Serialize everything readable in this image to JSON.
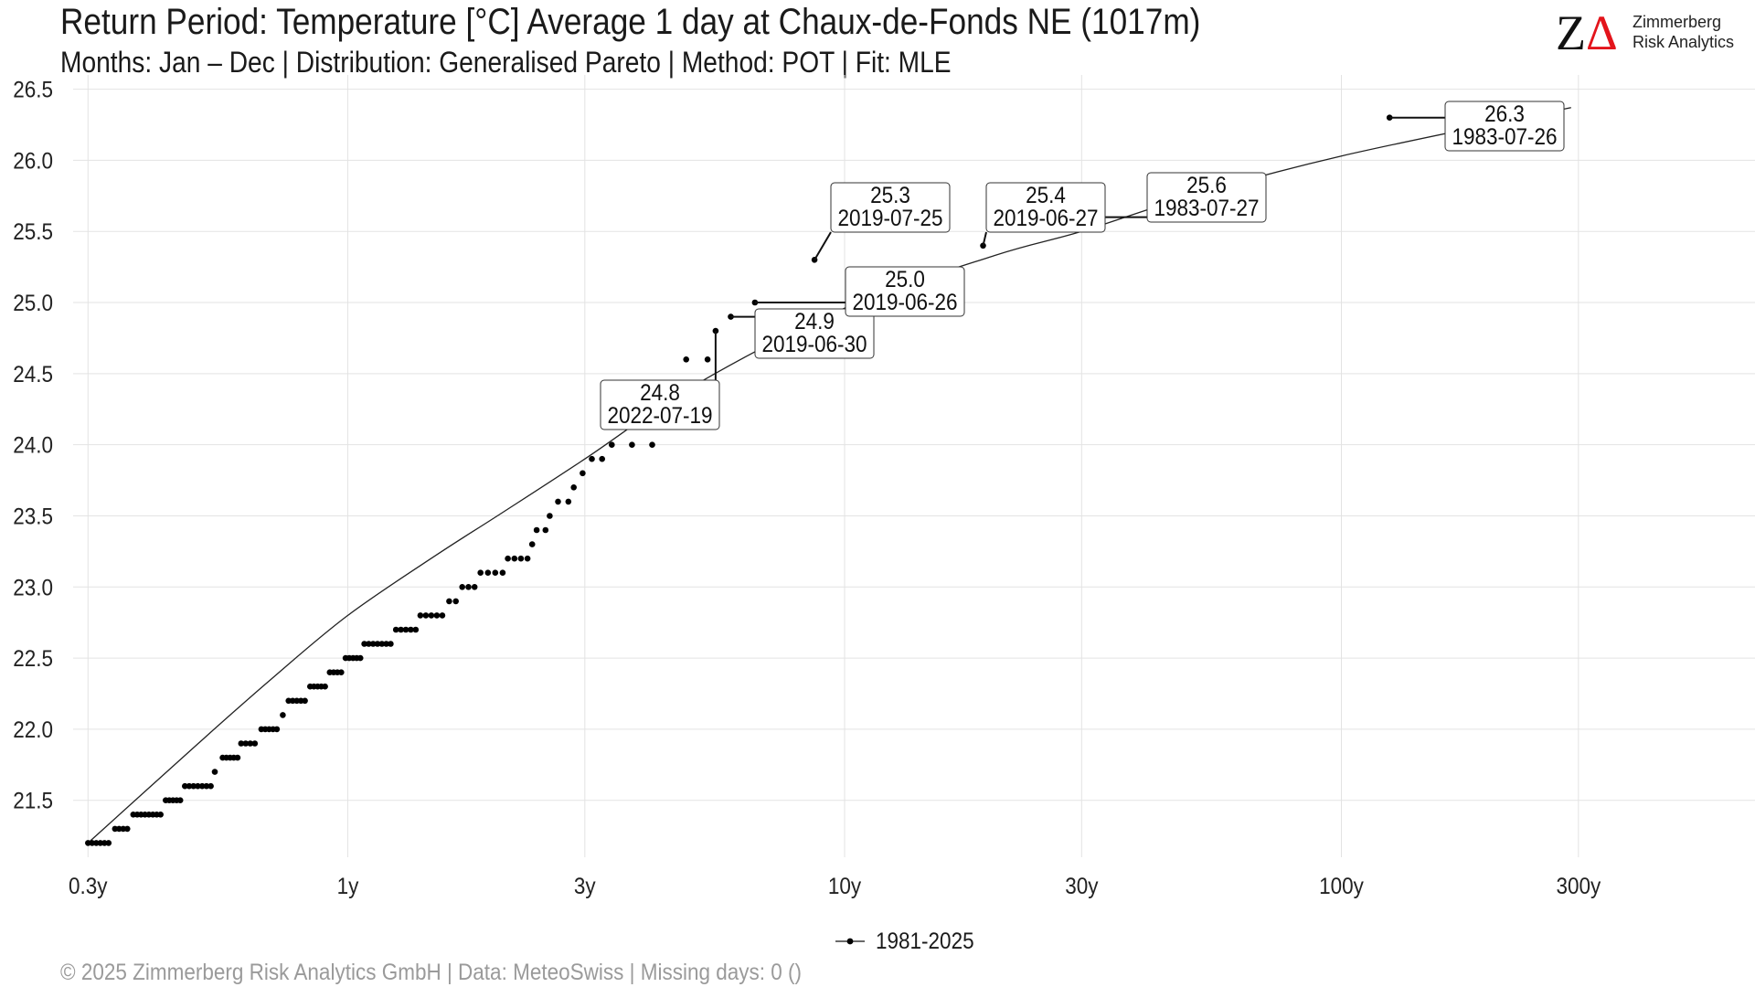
{
  "chart_data": {
    "type": "scatter",
    "title": "Return Period: Temperature [°C] Average 1 day at Chaux-de-Fonds  NE (1017m)",
    "subtitle": "Months: Jan – Dec | Distribution: Generalised Pareto | Method: POT | Fit: MLE",
    "x_scale": "log",
    "x_ticks": [
      {
        "value": 0.3,
        "label": "0.3y"
      },
      {
        "value": 1,
        "label": "1y"
      },
      {
        "value": 3,
        "label": "3y"
      },
      {
        "value": 10,
        "label": "10y"
      },
      {
        "value": 30,
        "label": "30y"
      },
      {
        "value": 100,
        "label": "100y"
      },
      {
        "value": 300,
        "label": "300y"
      }
    ],
    "y_ticks": [
      21.5,
      22.0,
      22.5,
      23.0,
      23.5,
      24.0,
      24.5,
      25.0,
      25.5,
      26.0,
      26.5
    ],
    "xlim": [
      0.28,
      680
    ],
    "ylim": [
      21.1,
      26.6
    ],
    "grid": true,
    "legend_position": "bottom",
    "series": [
      {
        "name": "1981-2025",
        "groups": [
          {
            "y": 21.2,
            "x_from": 0.3,
            "x_to": 0.33,
            "n": 6
          },
          {
            "y": 21.3,
            "x_from": 0.34,
            "x_to": 0.36,
            "n": 4
          },
          {
            "y": 21.4,
            "x_from": 0.37,
            "x_to": 0.42,
            "n": 8
          },
          {
            "y": 21.5,
            "x_from": 0.43,
            "x_to": 0.46,
            "n": 5
          },
          {
            "y": 21.6,
            "x_from": 0.47,
            "x_to": 0.53,
            "n": 7
          },
          {
            "y": 21.7,
            "x_from": 0.54,
            "x_to": 0.54,
            "n": 1
          },
          {
            "y": 21.8,
            "x_from": 0.56,
            "x_to": 0.6,
            "n": 5
          },
          {
            "y": 21.9,
            "x_from": 0.61,
            "x_to": 0.65,
            "n": 4
          },
          {
            "y": 22.0,
            "x_from": 0.67,
            "x_to": 0.72,
            "n": 5
          },
          {
            "y": 22.1,
            "x_from": 0.74,
            "x_to": 0.74,
            "n": 1
          },
          {
            "y": 22.2,
            "x_from": 0.76,
            "x_to": 0.82,
            "n": 5
          },
          {
            "y": 22.3,
            "x_from": 0.84,
            "x_to": 0.9,
            "n": 5
          },
          {
            "y": 22.4,
            "x_from": 0.92,
            "x_to": 0.97,
            "n": 4
          },
          {
            "y": 22.5,
            "x_from": 0.99,
            "x_to": 1.06,
            "n": 5
          },
          {
            "y": 22.6,
            "x_from": 1.08,
            "x_to": 1.22,
            "n": 7
          },
          {
            "y": 22.7,
            "x_from": 1.25,
            "x_to": 1.37,
            "n": 5
          },
          {
            "y": 22.8,
            "x_from": 1.4,
            "x_to": 1.55,
            "n": 5
          },
          {
            "y": 22.9,
            "x_from": 1.6,
            "x_to": 1.65,
            "n": 2
          },
          {
            "y": 23.0,
            "x_from": 1.7,
            "x_to": 1.8,
            "n": 3
          },
          {
            "y": 23.1,
            "x_from": 1.85,
            "x_to": 2.05,
            "n": 4
          },
          {
            "y": 23.2,
            "x_from": 2.1,
            "x_to": 2.3,
            "n": 4
          },
          {
            "y": 23.3,
            "x_from": 2.35,
            "x_to": 2.35,
            "n": 1
          },
          {
            "y": 23.4,
            "x_from": 2.4,
            "x_to": 2.5,
            "n": 2
          },
          {
            "y": 23.5,
            "x_from": 2.55,
            "x_to": 2.55,
            "n": 1
          },
          {
            "y": 23.6,
            "x_from": 2.65,
            "x_to": 2.78,
            "n": 2
          },
          {
            "y": 23.7,
            "x_from": 2.85,
            "x_to": 2.85,
            "n": 1
          },
          {
            "y": 23.8,
            "x_from": 2.97,
            "x_to": 2.97,
            "n": 1
          },
          {
            "y": 23.9,
            "x_from": 3.1,
            "x_to": 3.25,
            "n": 2
          },
          {
            "y": 24.0,
            "x_from": 3.4,
            "x_to": 4.1,
            "n": 3
          },
          {
            "y": 24.6,
            "x_from": 4.8,
            "x_to": 5.3,
            "n": 2
          },
          {
            "y": 24.8,
            "x_from": 5.5,
            "x_to": 5.5,
            "n": 1
          },
          {
            "y": 24.9,
            "x_from": 5.9,
            "x_to": 5.9,
            "n": 1
          },
          {
            "y": 25.0,
            "x_from": 6.6,
            "x_to": 6.6,
            "n": 1
          },
          {
            "y": 25.3,
            "x_from": 8.7,
            "x_to": 8.7,
            "n": 1
          },
          {
            "y": 25.4,
            "x_from": 19.0,
            "x_to": 19.0,
            "n": 1
          },
          {
            "y": 25.6,
            "x_from": 33.0,
            "x_to": 33.0,
            "n": 1
          },
          {
            "y": 26.3,
            "x_from": 125.0,
            "x_to": 125.0,
            "n": 1
          }
        ]
      }
    ],
    "fit_curve": [
      {
        "x": 0.3,
        "y": 21.2
      },
      {
        "x": 0.5,
        "y": 21.9
      },
      {
        "x": 0.7,
        "y": 22.35
      },
      {
        "x": 1,
        "y": 22.8
      },
      {
        "x": 1.5,
        "y": 23.22
      },
      {
        "x": 2,
        "y": 23.5
      },
      {
        "x": 3,
        "y": 23.9
      },
      {
        "x": 5,
        "y": 24.42
      },
      {
        "x": 10,
        "y": 24.96
      },
      {
        "x": 20,
        "y": 25.33
      },
      {
        "x": 30,
        "y": 25.5
      },
      {
        "x": 50,
        "y": 25.75
      },
      {
        "x": 100,
        "y": 26.03
      },
      {
        "x": 290,
        "y": 26.37
      }
    ],
    "annotations": [
      {
        "value": "24.8",
        "date": "2022-07-19",
        "point": {
          "x": 5.5,
          "y": 24.8
        }
      },
      {
        "value": "24.9",
        "date": "2019-06-30",
        "point": {
          "x": 5.9,
          "y": 24.9
        }
      },
      {
        "value": "25.0",
        "date": "2019-06-26",
        "point": {
          "x": 6.6,
          "y": 25.0
        }
      },
      {
        "value": "25.3",
        "date": "2019-07-25",
        "point": {
          "x": 8.7,
          "y": 25.3
        }
      },
      {
        "value": "25.4",
        "date": "2019-06-27",
        "point": {
          "x": 19.0,
          "y": 25.4
        }
      },
      {
        "value": "25.6",
        "date": "1983-07-27",
        "point": {
          "x": 33.0,
          "y": 25.6
        }
      },
      {
        "value": "26.3",
        "date": "1983-07-26",
        "point": {
          "x": 125.0,
          "y": 26.3
        }
      }
    ]
  },
  "legend": {
    "label": "1981-2025"
  },
  "logo": {
    "z": "Z",
    "delta": "Δ",
    "line1": "Zimmerberg",
    "line2": "Risk Analytics"
  },
  "footer": "©  2025 Zimmerberg Risk Analytics GmbH | Data: MeteoSwiss | Missing days: 0 ()",
  "colors": {
    "points": "#000000",
    "fit_line": "#222222",
    "grid": "#e3e3e3",
    "logo_accent": "#e3141b",
    "footer": "#9a9a9a"
  }
}
